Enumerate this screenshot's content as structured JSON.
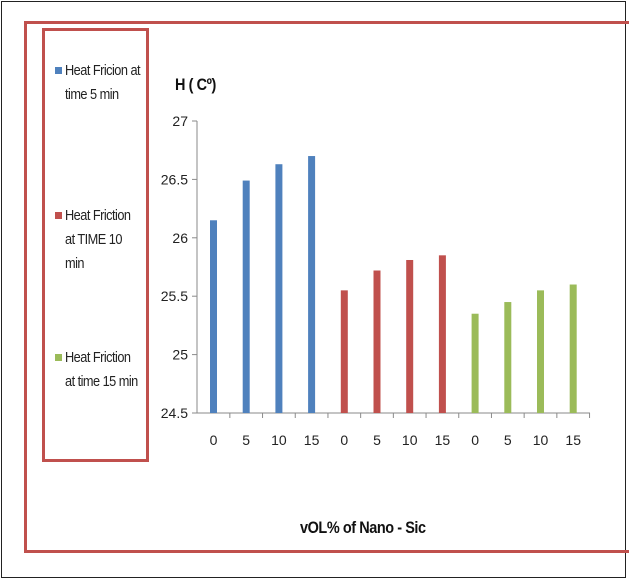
{
  "chart_data": {
    "type": "bar",
    "title": "",
    "ylabel": "H ( Cº)",
    "xlabel": "vOL% of Nano  - Sic",
    "ylim": [
      24.5,
      27
    ],
    "yticks": [
      "24.5",
      "25",
      "25.5",
      "26",
      "26.5",
      "27"
    ],
    "categories": [
      "0",
      "5",
      "10",
      "15",
      "0",
      "5",
      "10",
      "15",
      "0",
      "5",
      "10",
      "15"
    ],
    "legend_position": "left",
    "grid": false,
    "series": [
      {
        "name": "Heat Fricion at time 5 min",
        "color": "#4f81bd",
        "positions": [
          0,
          1,
          2,
          3
        ],
        "values": [
          26.15,
          26.49,
          26.63,
          26.7
        ]
      },
      {
        "name": "Heat Friction at TIME 10 min",
        "color": "#c0504d",
        "positions": [
          4,
          5,
          6,
          7
        ],
        "values": [
          25.55,
          25.72,
          25.81,
          25.85
        ]
      },
      {
        "name": "Heat Friction at time 15 min",
        "color": "#9bbb59",
        "positions": [
          8,
          9,
          10,
          11
        ],
        "values": [
          25.35,
          25.45,
          25.55,
          25.6
        ]
      }
    ]
  },
  "legend": {
    "items": [
      {
        "line1": "Heat Fricion at",
        "line2": "time 5 min",
        "line3": ""
      },
      {
        "line1": "Heat Friction",
        "line2": "at TIME 10",
        "line3": "min"
      },
      {
        "line1": "Heat Friction",
        "line2": "at time 15 min",
        "line3": ""
      }
    ]
  }
}
